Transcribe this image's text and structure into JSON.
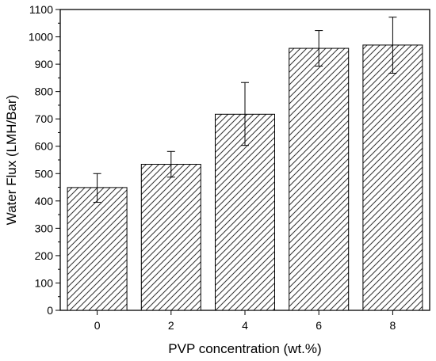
{
  "chart_data": {
    "type": "bar",
    "title": "",
    "xlabel": "PVP concentration (wt.%)",
    "ylabel": "Water Flux (LMH/Bar)",
    "categories": [
      "0",
      "2",
      "4",
      "6",
      "8"
    ],
    "values": [
      449,
      534,
      717,
      958,
      970
    ],
    "error_low": [
      395,
      487,
      603,
      893,
      867
    ],
    "error_high": [
      500,
      581,
      833,
      1023,
      1072
    ],
    "ylim": [
      0,
      1100
    ],
    "yticks": [
      "0",
      "100",
      "200",
      "300",
      "400",
      "500",
      "600",
      "700",
      "800",
      "900",
      "1000",
      "1100"
    ],
    "fill_pattern": "diagonal-hatch",
    "bar_edge_color": "#000000",
    "hatch_color": "#333333",
    "grid": false,
    "legend": "none"
  }
}
